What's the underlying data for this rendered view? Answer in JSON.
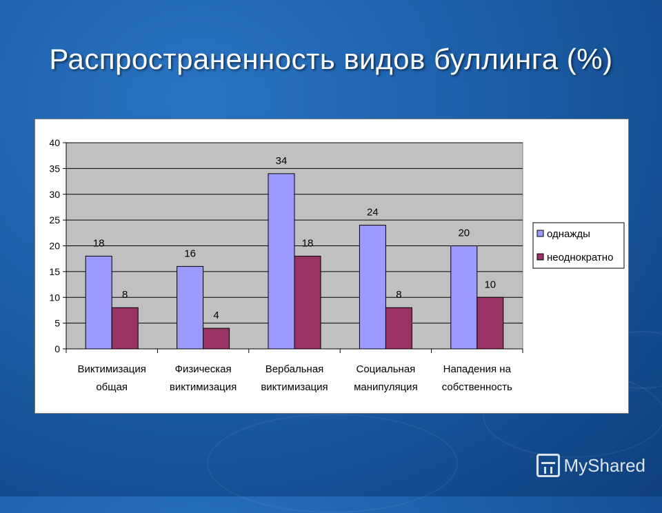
{
  "slide": {
    "title": "Распространенность видов буллинга (%)",
    "watermark": "MyShared"
  },
  "colors": {
    "series1": "#9a9aff",
    "series2": "#993366",
    "plot_bg": "#c0c0c0"
  },
  "chart_data": {
    "type": "bar",
    "title": "",
    "xlabel": "",
    "ylabel": "",
    "ylim": [
      0,
      40
    ],
    "yticks": [
      0,
      5,
      10,
      15,
      20,
      25,
      30,
      35,
      40
    ],
    "grid": true,
    "legend_position": "right",
    "categories": [
      [
        "Виктимизация",
        "общая"
      ],
      [
        "Физическая",
        "виктимизация"
      ],
      [
        "Вербальная",
        "виктимизация"
      ],
      [
        "Социальная",
        "манипуляция"
      ],
      [
        "Нападения на",
        "собственность"
      ]
    ],
    "series": [
      {
        "name": "однажды",
        "values": [
          18,
          16,
          34,
          24,
          20
        ]
      },
      {
        "name": "неоднократно",
        "values": [
          8,
          4,
          18,
          8,
          10
        ]
      }
    ]
  }
}
